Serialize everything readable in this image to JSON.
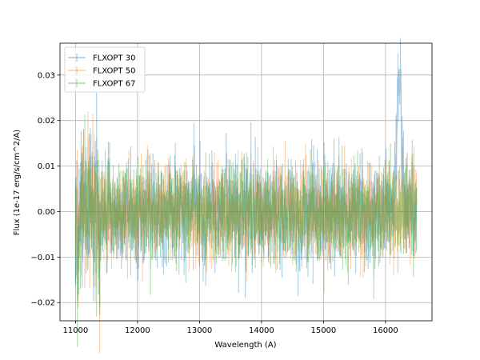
{
  "chart_data": {
    "type": "line",
    "title": "",
    "xlabel": "Wavelength (A)",
    "ylabel": "Flux (1e-17 erg/s/cm^2/A)",
    "xlim": [
      10750,
      16750
    ],
    "ylim": [
      -0.024,
      0.037
    ],
    "xticks": [
      11000,
      12000,
      13000,
      14000,
      15000,
      16000
    ],
    "yticks": [
      -0.02,
      -0.01,
      0.0,
      0.01,
      0.02,
      0.03
    ],
    "xtick_labels": [
      "11000",
      "12000",
      "13000",
      "14000",
      "15000",
      "16000"
    ],
    "ytick_labels": [
      "−0.02",
      "−0.01",
      "0.00",
      "0.01",
      "0.02",
      "0.03"
    ],
    "grid": true,
    "legend_position": "top-left",
    "x_range": [
      11000,
      16500
    ],
    "x_step": 10,
    "series": [
      {
        "name": "FLXOPT 30",
        "color": "#1f77b4",
        "features": [
          {
            "center": 16220,
            "width": 40,
            "peak": 0.031
          },
          {
            "center": 12920,
            "width": 30,
            "peak": 0.007
          },
          {
            "center": 14600,
            "width": 15,
            "peak": -0.009
          }
        ],
        "noise_amplitude": 0.0042
      },
      {
        "name": "FLXOPT 50",
        "color": "#ff7f0e",
        "features": [],
        "noise_amplitude": 0.0038
      },
      {
        "name": "FLXOPT 67",
        "color": "#2ca02c",
        "features": [
          {
            "center": 11050,
            "width": 25,
            "peak": -0.012
          }
        ],
        "noise_amplitude": 0.004
      }
    ]
  }
}
